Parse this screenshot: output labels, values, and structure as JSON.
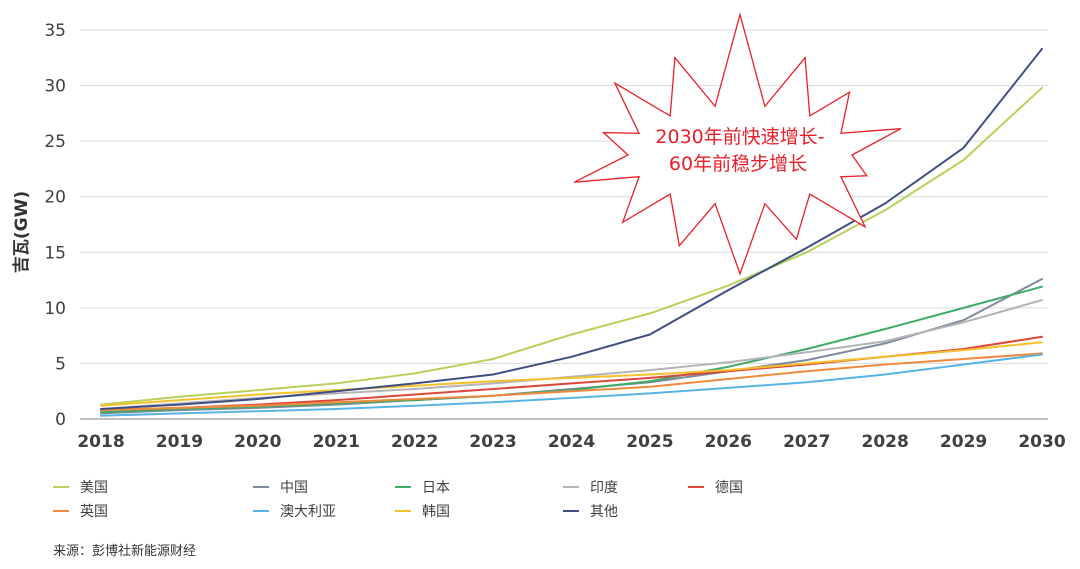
{
  "chart_data": {
    "type": "line",
    "ylabel": "吉瓦(GW)",
    "xlabel": "",
    "ylim": [
      0,
      35
    ],
    "yticks": [
      0,
      5,
      10,
      15,
      20,
      25,
      30,
      35
    ],
    "grid": true,
    "legend_position": "bottom",
    "x": [
      "2018",
      "2019",
      "2020",
      "2021",
      "2022",
      "2023",
      "2024",
      "2025",
      "2026",
      "2027",
      "2028",
      "2029",
      "2030"
    ],
    "series": [
      {
        "name": "美国",
        "color": "#b9d05a",
        "values": [
          1.3,
          2.0,
          2.6,
          3.2,
          4.1,
          5.4,
          7.6,
          9.5,
          12.0,
          15.0,
          18.8,
          23.3,
          29.8
        ]
      },
      {
        "name": "中国",
        "color": "#7f8aa0",
        "values": [
          0.5,
          0.8,
          1.0,
          1.3,
          1.7,
          2.1,
          2.7,
          3.3,
          4.3,
          5.3,
          6.8,
          8.9,
          12.6
        ]
      },
      {
        "name": "日本",
        "color": "#3fab69",
        "values": [
          0.6,
          0.9,
          1.1,
          1.4,
          1.7,
          2.1,
          2.6,
          3.4,
          4.7,
          6.3,
          8.1,
          10.0,
          11.9
        ]
      },
      {
        "name": "印度",
        "color": "#b4b4b8",
        "values": [
          0.9,
          1.4,
          1.9,
          2.3,
          2.7,
          3.2,
          3.8,
          4.4,
          5.1,
          6.0,
          7.0,
          8.7,
          10.7
        ]
      },
      {
        "name": "德国",
        "color": "#d9483b",
        "values": [
          0.8,
          1.0,
          1.3,
          1.7,
          2.2,
          2.7,
          3.2,
          3.7,
          4.3,
          4.9,
          5.6,
          6.3,
          7.4
        ]
      },
      {
        "name": "英国",
        "color": "#ef8a3e",
        "values": [
          0.8,
          1.0,
          1.2,
          1.5,
          1.8,
          2.1,
          2.5,
          2.9,
          3.6,
          4.3,
          4.9,
          5.4,
          5.9
        ]
      },
      {
        "name": "澳大利亚",
        "color": "#5bb3e2",
        "values": [
          0.3,
          0.5,
          0.7,
          0.9,
          1.2,
          1.5,
          1.9,
          2.3,
          2.8,
          3.3,
          4.0,
          4.9,
          5.8
        ]
      },
      {
        "name": "韩国",
        "color": "#f4c12d",
        "values": [
          1.2,
          1.7,
          2.2,
          2.6,
          3.0,
          3.4,
          3.7,
          4.0,
          4.4,
          5.0,
          5.6,
          6.2,
          6.9
        ]
      },
      {
        "name": "其他",
        "color": "#3f4f82",
        "values": [
          0.9,
          1.3,
          1.8,
          2.5,
          3.2,
          4.0,
          5.6,
          7.6,
          11.6,
          15.4,
          19.4,
          24.4,
          33.3
        ]
      }
    ],
    "annotation": {
      "lines": [
        "2030年前快速增长-",
        "60年前稳步增长"
      ],
      "color": "#e8202a",
      "shape": "starburst"
    }
  },
  "source": "来源：彭博社新能源财经"
}
